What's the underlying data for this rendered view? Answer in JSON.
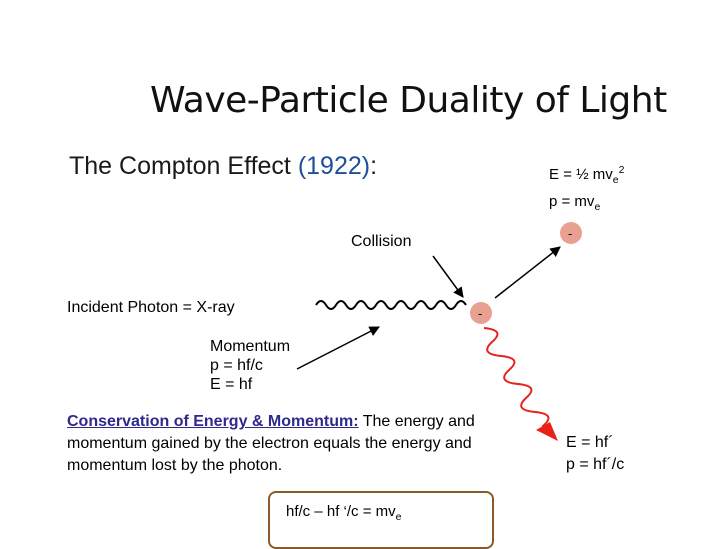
{
  "slide": {
    "title": "Wave-Particle Duality of Light",
    "subtitle_main": "The Compton Effect ",
    "subtitle_year": "(1922)",
    "subtitle_colon": ":"
  },
  "electron_after": {
    "energy_eq": "E = ½ mv",
    "energy_sub": "e",
    "energy_sup": "2",
    "momentum_eq": "p = mv",
    "momentum_sub": "e"
  },
  "labels": {
    "collision": "Collision",
    "incident_photon": "Incident Photon = X-ray",
    "electron_charge_top": "-",
    "electron_charge_mid": "-"
  },
  "photon_in": {
    "heading": "Momentum",
    "momentum": "p = hf/c",
    "energy": "E = hf"
  },
  "conservation": {
    "heading": "Conservation of Energy & Momentum:",
    "text": " The energy and momentum gained by the electron equals the energy and momentum lost by the photon."
  },
  "photon_out": {
    "energy": "E = hf´",
    "momentum": "p = hf´/c"
  },
  "formula": {
    "text": "hf/c – hf ‘/c = mv",
    "sub": "e"
  },
  "colors": {
    "year": "#1f4e9a",
    "heading": "#2d2a8c",
    "scattered_photon": "#e8221b",
    "electron_dot": "#e8a090",
    "box_border": "#8b5a2b"
  }
}
